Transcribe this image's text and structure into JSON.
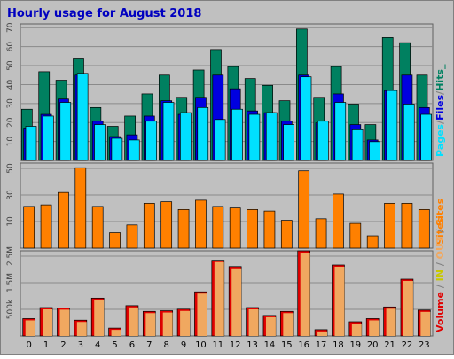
{
  "colors": {
    "frame": "#c0c0c0",
    "frame_border": "#808080",
    "panel_bg": "#c0c0c0",
    "title": "#0000c0",
    "hits": "#008060",
    "files": "#0000e0",
    "pages": "#00e0ff",
    "visits": "#ff8000",
    "volume": "#e00000",
    "in": "#c8c800",
    "out": "#f0a860",
    "sites": "#ff8000"
  },
  "chart_data": {
    "type": "bar",
    "title": "Hourly usage for August 2018",
    "categories": [
      "0",
      "1",
      "2",
      "3",
      "4",
      "5",
      "6",
      "7",
      "8",
      "9",
      "10",
      "11",
      "12",
      "13",
      "14",
      "15",
      "16",
      "17",
      "18",
      "19",
      "20",
      "21",
      "22",
      "23"
    ],
    "panels": [
      {
        "id": "hits-files-pages",
        "ylim": [
          0,
          80
        ],
        "yticks": [
          "10",
          "20",
          "30",
          "40",
          "50",
          "60",
          "70"
        ],
        "legend_right": [
          {
            "text": "Pages",
            "color_key": "pages"
          },
          {
            "text": "/",
            "color_key": "frame_border"
          },
          {
            "text": "Files",
            "color_key": "files"
          },
          {
            "text": "/",
            "color_key": "frame_border"
          },
          {
            "text": "Hits_",
            "color_key": "hits"
          }
        ],
        "series": [
          {
            "name": "Hits",
            "color_key": "hits",
            "values": [
              30,
              52,
              47,
              60,
              31,
              20,
              26,
              39,
              50,
              37,
              53,
              65,
              55,
              48,
              44,
              35,
              77,
              37,
              55,
              33,
              21,
              72,
              69,
              50
            ]
          },
          {
            "name": "Files",
            "color_key": "files",
            "values": [
              19,
              27,
              36,
              50,
              23,
              14,
              15,
              26,
              35,
              27,
              37,
              50,
              42,
              29,
              28,
              23,
              50,
              22,
              39,
              21,
              12,
              41,
              50,
              31
            ]
          },
          {
            "name": "Pages",
            "color_key": "pages",
            "values": [
              20,
              26,
              34,
              51,
              21,
              13,
              12,
              23,
              34,
              28,
              31,
              24,
              30,
              27,
              28,
              21,
              49,
              23,
              34,
              18,
              11,
              41,
              33,
              27
            ]
          }
        ]
      },
      {
        "id": "visits",
        "ylim": [
          0,
          55
        ],
        "yticks": [
          "10",
          "30",
          "50"
        ],
        "legend_right": [
          {
            "text": "Sites",
            "color_key": "sites"
          }
        ],
        "series": [
          {
            "name": "Sites",
            "color_key": "visits",
            "values": [
              27,
              28,
              36,
              52,
              27,
              10,
              15,
              29,
              30,
              25,
              31,
              27,
              26,
              25,
              24,
              18,
              50,
              19,
              35,
              16,
              8,
              29,
              29,
              25
            ]
          }
        ]
      },
      {
        "id": "volume",
        "ylim": [
          0,
          2700000
        ],
        "yticks": [
          "500k",
          "1.5M",
          "2.5M"
        ],
        "legend_right": [
          {
            "text": "Volume",
            "color_key": "volume"
          },
          {
            "text": " / ",
            "color_key": "frame_border"
          },
          {
            "text": "IN",
            "color_key": "in"
          },
          {
            "text": " / ",
            "color_key": "frame_border"
          },
          {
            "text": "OUT",
            "color_key": "out"
          },
          {
            "text": " / ",
            "color_key": "frame_border"
          },
          {
            "text": "Sites",
            "color_key": "sites"
          }
        ],
        "series": [
          {
            "name": "Volume",
            "color_key": "volume",
            "values": [
              550000,
              900000,
              890000,
              500000,
              1200000,
              250000,
              960000,
              780000,
              800000,
              850000,
              1400000,
              2400000,
              2200000,
              900000,
              650000,
              780000,
              2700000,
              200000,
              2250000,
              450000,
              550000,
              920000,
              1800000,
              820000
            ]
          }
        ]
      }
    ]
  }
}
